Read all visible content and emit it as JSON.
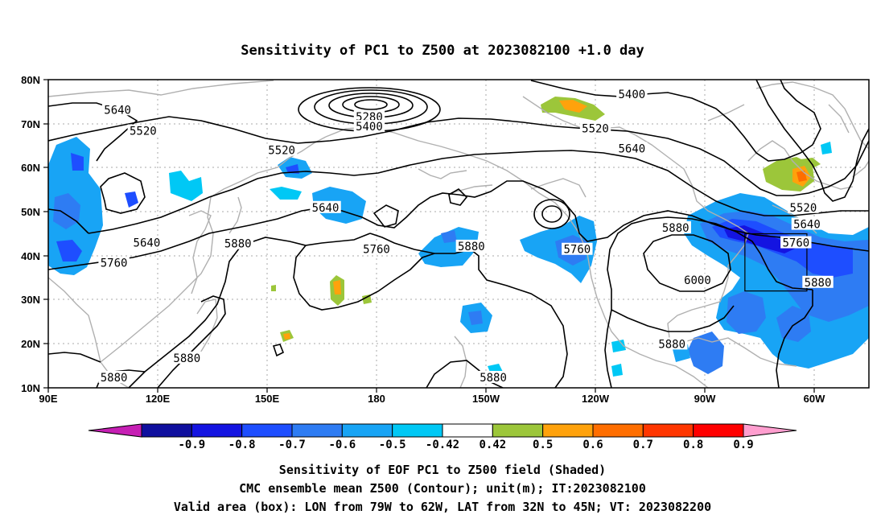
{
  "title": "Sensitivity of PC1 to Z500 at 2023082100 +1.0 day",
  "lat_labels": [
    "80N",
    "70N",
    "60N",
    "50N",
    "40N",
    "30N",
    "20N",
    "10N"
  ],
  "lon_labels": [
    "90E",
    "120E",
    "150E",
    "180",
    "150W",
    "120W",
    "90W",
    "60W"
  ],
  "contour_labels": [
    {
      "text": "5640",
      "lon": 109,
      "lat": 73
    },
    {
      "text": "5520",
      "lon": 116,
      "lat": 68.2
    },
    {
      "text": "5280",
      "lon": 178,
      "lat": 71.4
    },
    {
      "text": "5400",
      "lon": 178,
      "lat": 69.2
    },
    {
      "text": "5520",
      "lon": 154,
      "lat": 63.8
    },
    {
      "text": "5640",
      "lon": 166,
      "lat": 50.8
    },
    {
      "text": "5640",
      "lon": 117,
      "lat": 42.8
    },
    {
      "text": "5880",
      "lon": 142,
      "lat": 42.6
    },
    {
      "text": "5760",
      "lon": 108,
      "lat": 38.2
    },
    {
      "text": "5760",
      "lon": 180,
      "lat": 41.3
    },
    {
      "text": "5880",
      "lon": -154,
      "lat": 42
    },
    {
      "text": "5760",
      "lon": -125,
      "lat": 41.3
    },
    {
      "text": "5400",
      "lon": -110,
      "lat": 76.5
    },
    {
      "text": "5520",
      "lon": -120,
      "lat": 68.8
    },
    {
      "text": "5640",
      "lon": -110,
      "lat": 64.2
    },
    {
      "text": "5880",
      "lon": -98,
      "lat": 46.2
    },
    {
      "text": "6000",
      "lon": -92,
      "lat": 34.3
    },
    {
      "text": "5760",
      "lon": -65,
      "lat": 42.8
    },
    {
      "text": "5640",
      "lon": -62,
      "lat": 47
    },
    {
      "text": "5520",
      "lon": -63,
      "lat": 50.8
    },
    {
      "text": "5880",
      "lon": -59,
      "lat": 33.8
    },
    {
      "text": "5880",
      "lon": -99,
      "lat": 19.8
    },
    {
      "text": "5880",
      "lon": -148,
      "lat": 12.2
    },
    {
      "text": "5880",
      "lon": 128,
      "lat": 16.6
    },
    {
      "text": "5880",
      "lon": 108,
      "lat": 12.2
    }
  ],
  "colorbar": {
    "tick_labels": [
      "-0.9",
      "-0.8",
      "-0.7",
      "-0.6",
      "-0.5",
      "-0.42",
      "0.42",
      "0.5",
      "0.6",
      "0.7",
      "0.8",
      "0.9"
    ],
    "colors": [
      "#c61fb4",
      "#0f0f9e",
      "#1414e1",
      "#1e4eff",
      "#2e7cf3",
      "#18a4f5",
      "#00c8f5",
      "#ffffff",
      "#9cc63a",
      "#ffa20c",
      "#ff6e00",
      "#ff3600",
      "#ff0000",
      "#ff9ecf"
    ]
  },
  "caption": {
    "line1": "Sensitivity of EOF PC1 to Z500 field (Shaded)",
    "line2": "CMC ensemble mean Z500 (Contour); unit(m); IT:2023082100",
    "line3": "Valid area (box): LON from 79W to 62W, LAT from 32N to 45N; VT: 2023082200"
  },
  "valid_box": {
    "lon_min": -79,
    "lon_max": -62,
    "lat_min": 32,
    "lat_max": 45
  }
}
